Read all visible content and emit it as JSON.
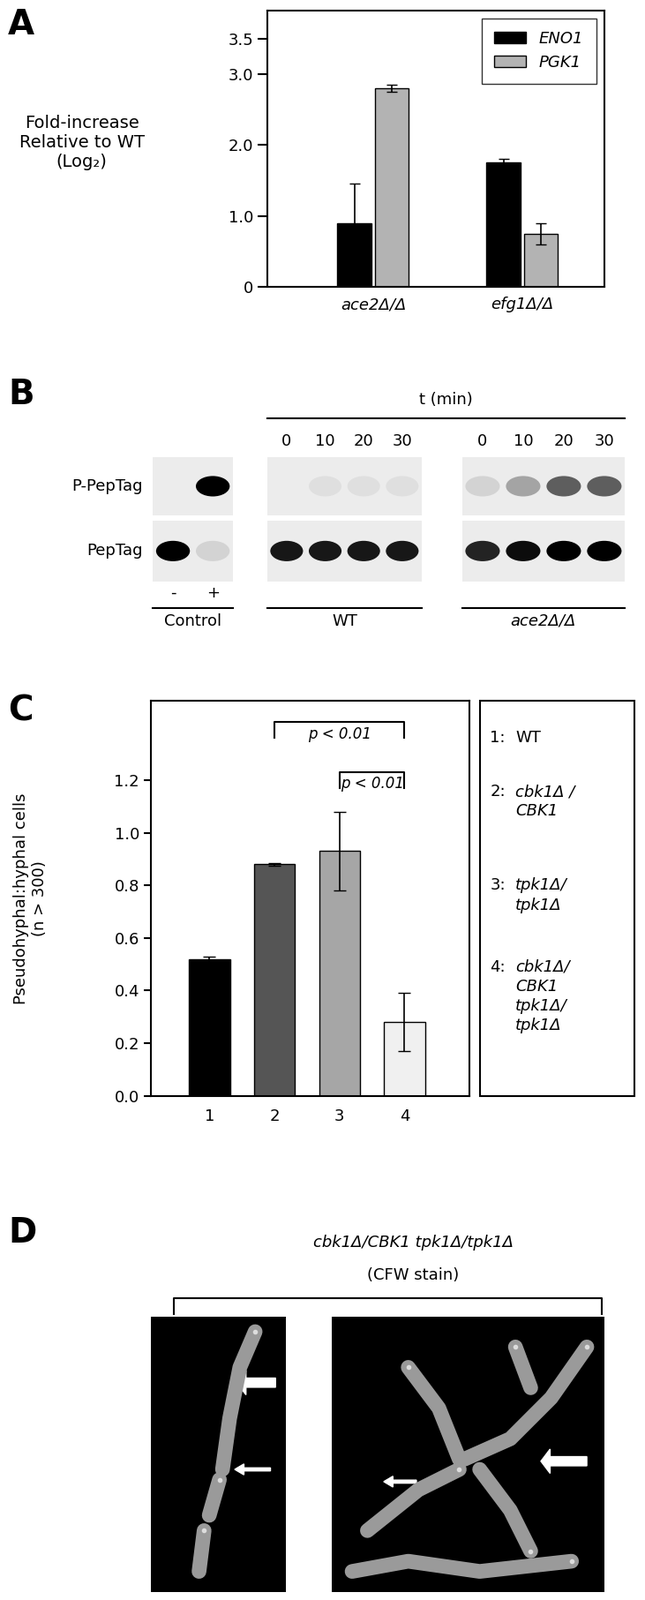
{
  "chart_data": [
    {
      "panel_label": "A",
      "type": "bar",
      "ylabel": "Fold-increase\nRelative to WT\n(Log₂)",
      "categories": [
        "ace2Δ/Δ",
        "efg1Δ/Δ"
      ],
      "series": [
        {
          "name": "ENO1",
          "color": "#000000",
          "values": [
            0.9,
            1.75
          ],
          "errors": [
            0.55,
            0.05
          ]
        },
        {
          "name": "PGK1",
          "color": "#b3b3b3",
          "values": [
            2.8,
            0.75
          ],
          "errors": [
            0.05,
            0.15
          ]
        }
      ],
      "ylim": [
        0,
        3.9
      ],
      "yticks": [
        0,
        {
          "value": 1,
          "label": "1.0"
        },
        {
          "value": 2,
          "label": "2.0"
        },
        {
          "value": 3,
          "label": "3.0"
        },
        3.5
      ],
      "legend": "upper right"
    },
    {
      "panel_label": "C",
      "type": "bar",
      "ylabel": "Pseudohyphal:hyphal cells\n(n > 300)",
      "categories": [
        "1",
        "2",
        "3",
        "4"
      ],
      "values": [
        0.52,
        0.88,
        0.93,
        0.28
      ],
      "errors": [
        0.01,
        0.005,
        0.15,
        0.11
      ],
      "colors": [
        "#000000",
        "#555555",
        "#a6a6a6",
        "#f0f0f0"
      ],
      "ylim": [
        0,
        1.5
      ],
      "yticks": [
        {
          "value": 0,
          "label": "0.0"
        },
        0.2,
        0.4,
        0.6,
        0.8,
        {
          "value": 1,
          "label": "1.0"
        },
        1.2
      ],
      "significance": [
        {
          "from": "2",
          "to": "4",
          "y": 1.42,
          "label": "p < 0.01"
        },
        {
          "from": "3",
          "to": "4",
          "y": 1.23,
          "label": "p < 0.01"
        }
      ],
      "key": [
        {
          "number": "1:",
          "label": "WT"
        },
        {
          "number": "2:",
          "label": "cbk1Δ /\nCBK1"
        },
        {
          "number": "3:",
          "label": "tpk1Δ/\ntpk1Δ"
        },
        {
          "number": "4:",
          "label": "cbk1Δ/\nCBK1\ntpk1Δ/\ntpk1Δ"
        }
      ]
    }
  ],
  "blot": {
    "panel_label": "B",
    "time_label": "t (min)",
    "rows": [
      "P-PepTag",
      "PepTag"
    ],
    "groups": [
      {
        "label": "Control",
        "lanes": [
          "-",
          "+"
        ],
        "bands": [
          [
            0,
            1
          ],
          [
            1,
            0.1
          ]
        ]
      },
      {
        "label": "WT",
        "lanes": [
          "0",
          "10",
          "20",
          "30"
        ],
        "bands": [
          [
            0,
            0.05,
            0.05,
            0.05
          ],
          [
            0.9,
            0.9,
            0.9,
            0.9
          ]
        ]
      },
      {
        "label": "ace2Δ/Δ",
        "lanes": [
          "0",
          "10",
          "20",
          "30"
        ],
        "bands": [
          [
            0.1,
            0.3,
            0.6,
            0.6
          ],
          [
            0.85,
            0.95,
            1,
            1
          ]
        ]
      }
    ]
  },
  "micrograph": {
    "panel_label": "D",
    "title": "cbk1Δ/CBK1 tpk1Δ/tpk1Δ",
    "subtitle": "(CFW stain)"
  }
}
